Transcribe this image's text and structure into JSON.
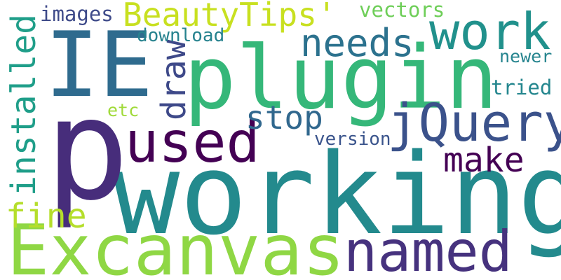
{
  "words": [
    {
      "text": "working",
      "color": "#238a8d"
    },
    {
      "text": "plugin",
      "color": "#35b779"
    },
    {
      "text": "p",
      "color": "#472d7b"
    },
    {
      "text": "IE",
      "color": "#2f6b8e"
    },
    {
      "text": "Excanvas",
      "color": "#8fd744"
    },
    {
      "text": "jQuery",
      "color": "#3b528b"
    },
    {
      "text": "used",
      "color": "#440154"
    },
    {
      "text": "named",
      "color": "#46327e"
    },
    {
      "text": "work",
      "color": "#21918c"
    },
    {
      "text": "BeautyTips'",
      "color": "#c8e020"
    },
    {
      "text": "installed",
      "color": "#1f9e89"
    },
    {
      "text": "needs",
      "color": "#2c728e"
    },
    {
      "text": "draw",
      "color": "#3e4989"
    },
    {
      "text": "stop",
      "color": "#31688e"
    },
    {
      "text": "make",
      "color": "#440154"
    },
    {
      "text": "fine",
      "color": "#b5de2b"
    },
    {
      "text": "images",
      "color": "#3e4a89"
    },
    {
      "text": "vectors",
      "color": "#6ece58"
    },
    {
      "text": "download",
      "color": "#26828e"
    },
    {
      "text": "tried",
      "color": "#24868e"
    },
    {
      "text": "newer",
      "color": "#25848e"
    },
    {
      "text": "version",
      "color": "#3a548c"
    },
    {
      "text": "etc",
      "color": "#a0da39"
    }
  ]
}
